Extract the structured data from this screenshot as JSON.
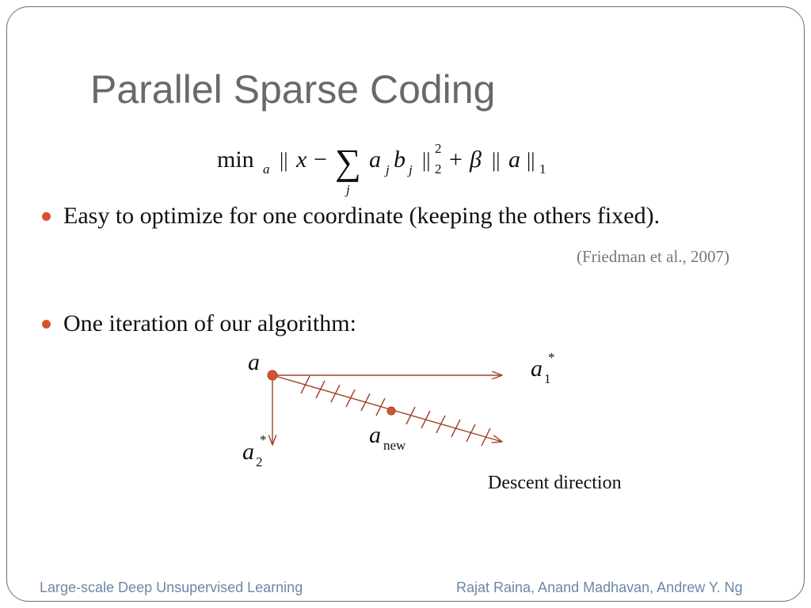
{
  "slide": {
    "title": "Parallel Sparse Coding",
    "equation": {
      "min": "min",
      "min_sub": "a",
      "norm_open": "||",
      "x": "x",
      "minus": "−",
      "sum": "∑",
      "sum_sub": "j",
      "a": "a",
      "a_sub": "j",
      "b": "b",
      "b_sub": "j",
      "norm_close": "||",
      "norm_sup": "2",
      "norm_sub": "2",
      "plus": "+",
      "beta": "β",
      "norm2_open": "||",
      "a2": "a",
      "norm2_close": "||",
      "norm2_sub": "1"
    },
    "bullets": [
      "Easy to optimize for one coordinate (keeping the others fixed).",
      "One iteration of our algorithm:"
    ],
    "citation": "(Friedman et al., 2007)",
    "diagram": {
      "label_a": "a",
      "label_a1": "a",
      "label_a1_sub": "1",
      "label_a1_sup": "*",
      "label_a2": "a",
      "label_a2_sub": "2",
      "label_a2_sup": "*",
      "label_anew": "a",
      "label_anew_sub": "new",
      "caption": "Descent direction",
      "colors": {
        "arrow": "#a0402a",
        "dot": "#d7542a"
      }
    },
    "footer": {
      "left": "Large-scale Deep Unsupervised Learning",
      "right": "Rajat Raina, Anand Madhavan, Andrew Y. Ng"
    }
  }
}
